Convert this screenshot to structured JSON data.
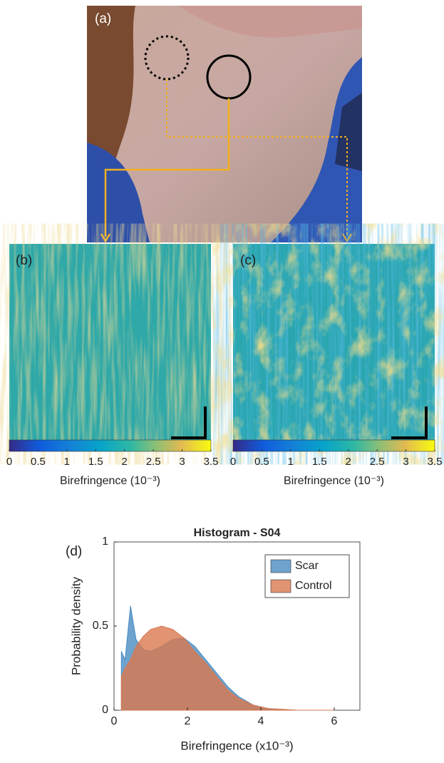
{
  "panels": {
    "a": "(a)",
    "b": "(b)",
    "c": "(c)",
    "d": "(d)"
  },
  "colorbars": [
    {
      "lim": [
        0,
        3.5
      ],
      "ticks": [
        0,
        0.5,
        1,
        1.5,
        2,
        2.5,
        3,
        3.5
      ],
      "label": "Birefringence (10⁻³)"
    },
    {
      "lim": [
        0,
        3.5
      ],
      "ticks": [
        0,
        0.5,
        1,
        1.5,
        2,
        2.5,
        3,
        3.5
      ],
      "label": "Birefringence (10⁻³)"
    }
  ],
  "chart_data": {
    "type": "area",
    "title": "Histogram - S04",
    "x_label": "Birefringence (x10⁻³)",
    "y_label": "Probability density",
    "x": [
      0.2,
      0.3,
      0.45,
      0.6,
      0.8,
      1.0,
      1.3,
      1.6,
      1.9,
      2.2,
      2.5,
      2.8,
      3.1,
      3.4,
      3.8,
      4.2,
      5.0,
      6.0
    ],
    "series": [
      {
        "name": "Scar",
        "color": "#4a8cc2",
        "values": [
          0.35,
          0.3,
          0.62,
          0.42,
          0.36,
          0.35,
          0.38,
          0.42,
          0.43,
          0.38,
          0.3,
          0.22,
          0.14,
          0.08,
          0.03,
          0.01,
          0,
          0
        ]
      },
      {
        "name": "Control",
        "color": "#d9784f",
        "values": [
          0.2,
          0.25,
          0.3,
          0.38,
          0.44,
          0.48,
          0.5,
          0.48,
          0.43,
          0.35,
          0.28,
          0.2,
          0.12,
          0.07,
          0.03,
          0.01,
          0,
          0
        ]
      }
    ],
    "xlim": [
      0,
      6.7
    ],
    "xticks": [
      0,
      2,
      4,
      6
    ],
    "ylim": [
      0,
      1
    ],
    "yticks": [
      0,
      0.5,
      1
    ],
    "legend": "top-right"
  }
}
